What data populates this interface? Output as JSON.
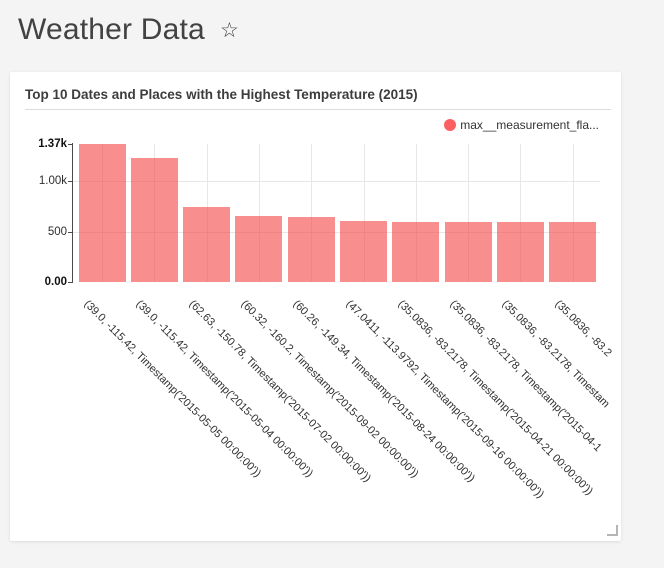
{
  "page": {
    "title": "Weather Data",
    "favorite_star": "☆"
  },
  "widget": {
    "title": "Top 10 Dates and Places with the Highest Temperature (2015)",
    "legend": {
      "label": "max__measurement_fla...",
      "dot_color": "#fb5f5f"
    }
  },
  "chart_data": {
    "type": "bar",
    "title": "Top 10 Dates and Places with the Highest Temperature (2015)",
    "series_name": "max__measurement_fla...",
    "categories": [
      "(39.0, -115.42, Timestamp('2015-05-05 00:00:00'))",
      "(39.0, -115.42, Timestamp('2015-05-04 00:00:00'))",
      "(62.63, -150.78, Timestamp('2015-07-02 00:00:00'))",
      "(60.32, -160.2, Timestamp('2015-09-02 00:00:00'))",
      "(60.26, -149.34, Timestamp('2015-08-24 00:00:00'))",
      "(47.0411, -113.9792, Timestamp('2015-09-16 00:00:00'))",
      "(35.0836, -83.2178, Timestamp('2015-04-21 00:00:00'))",
      "(35.0836, -83.2178, Timestamp('2015-04-1",
      "(35.0836, -83.2178, Timestam",
      "(35.0836, -83.2"
    ],
    "values": [
      1370,
      1230,
      745,
      655,
      650,
      605,
      600,
      599,
      598,
      597
    ],
    "ylim": [
      0,
      1370
    ],
    "ytick_values": [
      0,
      500,
      1000,
      1370
    ],
    "ytick_labels": [
      "0.00",
      "500",
      "1.00k",
      "1.37k"
    ],
    "grid": true,
    "legend_position": "top-right",
    "bar_color": "#f64848",
    "xlabel": "",
    "ylabel": ""
  }
}
